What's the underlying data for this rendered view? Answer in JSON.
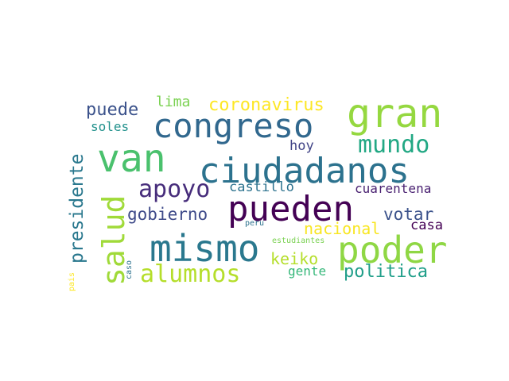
{
  "words": [
    {
      "id": "congreso",
      "text": "congreso",
      "color": "#31688e"
    },
    {
      "id": "gran",
      "text": "gran",
      "color": "#95d840"
    },
    {
      "id": "ciudadanos",
      "text": "ciudadanos",
      "color": "#2c728e"
    },
    {
      "id": "van",
      "text": "van",
      "color": "#4ac16d"
    },
    {
      "id": "pueden",
      "text": "pueden",
      "color": "#440154"
    },
    {
      "id": "mismo",
      "text": "mismo",
      "color": "#2a788e"
    },
    {
      "id": "poder",
      "text": "poder",
      "color": "#8fd744"
    },
    {
      "id": "salud",
      "text": "salud",
      "color": "#a0da39"
    },
    {
      "id": "apoyo",
      "text": "apoyo",
      "color": "#472d7b"
    },
    {
      "id": "mundo",
      "text": "mundo",
      "color": "#22a884"
    },
    {
      "id": "alumnos",
      "text": "alumnos",
      "color": "#b5de2b"
    },
    {
      "id": "coronavirus",
      "text": "coronavirus",
      "color": "#fde725"
    },
    {
      "id": "puede",
      "text": "puede",
      "color": "#3b528b"
    },
    {
      "id": "lima",
      "text": "lima",
      "color": "#7ad151"
    },
    {
      "id": "soles",
      "text": "soles",
      "color": "#21918c"
    },
    {
      "id": "hoy",
      "text": "hoy",
      "color": "#414487"
    },
    {
      "id": "presidente",
      "text": "presidente",
      "color": "#2a788e"
    },
    {
      "id": "castillo",
      "text": "castillo",
      "color": "#2c728e"
    },
    {
      "id": "cuarentena",
      "text": "cuarentena",
      "color": "#481f70"
    },
    {
      "id": "gobierno",
      "text": "gobierno",
      "color": "#3e4a89"
    },
    {
      "id": "votar",
      "text": "votar",
      "color": "#3b528b"
    },
    {
      "id": "nacional",
      "text": "nacional",
      "color": "#f8e621"
    },
    {
      "id": "casa",
      "text": "casa",
      "color": "#440154"
    },
    {
      "id": "keiko",
      "text": "keiko",
      "color": "#b5de2b"
    },
    {
      "id": "gente",
      "text": "gente",
      "color": "#35b779"
    },
    {
      "id": "politica",
      "text": "politica",
      "color": "#1f9e89"
    },
    {
      "id": "peru",
      "text": "peru",
      "color": "#2c728e"
    },
    {
      "id": "estudiantes",
      "text": "estudiantes",
      "color": "#7ad151"
    },
    {
      "id": "caso",
      "text": "caso",
      "color": "#2c728e"
    },
    {
      "id": "pais",
      "text": "pais",
      "color": "#fde725"
    }
  ]
}
